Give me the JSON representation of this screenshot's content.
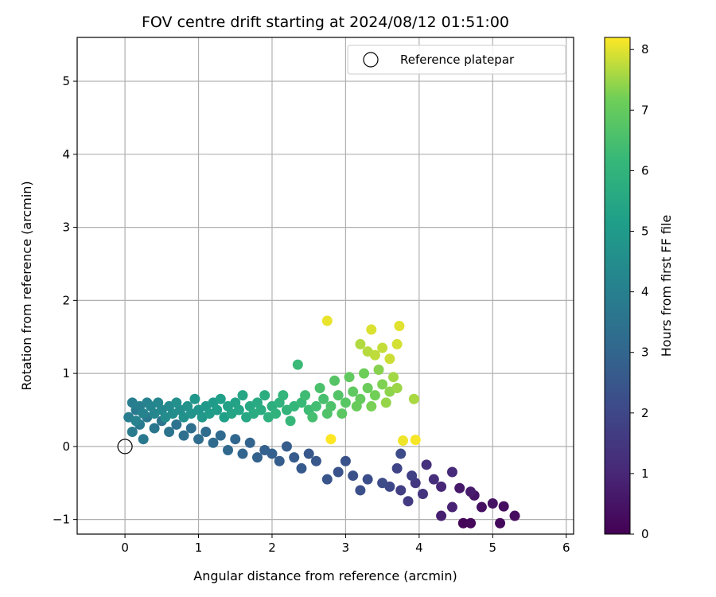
{
  "chart_data": {
    "type": "scatter",
    "title": "FOV centre drift starting at 2024/08/12 01:51:00",
    "xlabel": "Angular distance from reference (arcmin)",
    "ylabel": "Rotation from reference (arcmin)",
    "xlim": [
      -0.65,
      6.1
    ],
    "ylim": [
      -1.2,
      5.6
    ],
    "xticks": [
      0,
      1,
      2,
      3,
      4,
      5,
      6
    ],
    "yticks": [
      -1,
      0,
      1,
      2,
      3,
      4,
      5
    ],
    "grid": true,
    "colorbar": {
      "label": "Hours from first FF file",
      "range": [
        0,
        8.2
      ],
      "ticks": [
        0,
        1,
        2,
        3,
        4,
        5,
        6,
        7,
        8
      ],
      "colormap": "viridis"
    },
    "legend": {
      "placement": "top-right",
      "entries": [
        "Reference platepar"
      ]
    },
    "reference_point": {
      "x": 0,
      "y": 0,
      "label": "Reference platepar"
    },
    "series": [
      {
        "color_by": "hours",
        "points": [
          [
            4.6,
            -1.05,
            0.1
          ],
          [
            4.7,
            -1.05,
            0.15
          ],
          [
            5.1,
            -1.05,
            0.2
          ],
          [
            5.3,
            -0.95,
            0.3
          ],
          [
            5.15,
            -0.82,
            0.35
          ],
          [
            4.85,
            -0.83,
            0.4
          ],
          [
            5.0,
            -0.78,
            0.45
          ],
          [
            4.75,
            -0.67,
            0.5
          ],
          [
            4.55,
            -0.57,
            0.6
          ],
          [
            4.7,
            -0.62,
            0.7
          ],
          [
            4.3,
            -0.95,
            0.8
          ],
          [
            4.45,
            -0.83,
            0.9
          ],
          [
            4.3,
            -0.55,
            1.0
          ],
          [
            4.45,
            -0.35,
            1.1
          ],
          [
            4.2,
            -0.45,
            1.2
          ],
          [
            4.1,
            -0.25,
            1.3
          ],
          [
            4.05,
            -0.65,
            1.4
          ],
          [
            3.95,
            -0.5,
            1.5
          ],
          [
            3.85,
            -0.75,
            1.6
          ],
          [
            3.75,
            -0.6,
            1.7
          ],
          [
            3.9,
            -0.4,
            1.8
          ],
          [
            3.7,
            -0.3,
            1.9
          ],
          [
            3.6,
            -0.55,
            2.0
          ],
          [
            3.5,
            -0.5,
            2.1
          ],
          [
            3.75,
            -0.1,
            2.15
          ],
          [
            3.3,
            -0.45,
            2.2
          ],
          [
            3.2,
            -0.6,
            2.25
          ],
          [
            3.1,
            -0.4,
            2.3
          ],
          [
            3.0,
            -0.2,
            2.35
          ],
          [
            2.9,
            -0.35,
            2.4
          ],
          [
            2.75,
            -0.45,
            2.45
          ],
          [
            2.6,
            -0.2,
            2.5
          ],
          [
            2.5,
            -0.1,
            2.55
          ],
          [
            2.4,
            -0.3,
            2.6
          ],
          [
            2.3,
            -0.15,
            2.65
          ],
          [
            2.2,
            0.0,
            2.7
          ],
          [
            2.1,
            -0.2,
            2.75
          ],
          [
            2.0,
            -0.1,
            2.8
          ],
          [
            1.9,
            -0.05,
            2.85
          ],
          [
            1.8,
            -0.15,
            2.9
          ],
          [
            1.7,
            0.05,
            2.95
          ],
          [
            1.6,
            -0.1,
            3.0
          ],
          [
            1.5,
            0.1,
            3.05
          ],
          [
            1.4,
            -0.05,
            3.1
          ],
          [
            1.3,
            0.15,
            3.15
          ],
          [
            1.2,
            0.05,
            3.2
          ],
          [
            1.1,
            0.2,
            3.25
          ],
          [
            1.0,
            0.1,
            3.3
          ],
          [
            0.9,
            0.25,
            3.35
          ],
          [
            0.8,
            0.15,
            3.4
          ],
          [
            0.7,
            0.3,
            3.45
          ],
          [
            0.6,
            0.2,
            3.5
          ],
          [
            0.5,
            0.35,
            3.55
          ],
          [
            0.4,
            0.25,
            3.6
          ],
          [
            0.3,
            0.4,
            3.65
          ],
          [
            0.25,
            0.1,
            3.7
          ],
          [
            0.2,
            0.3,
            3.75
          ],
          [
            0.15,
            0.5,
            3.8
          ],
          [
            0.1,
            0.2,
            3.85
          ],
          [
            0.05,
            0.4,
            3.9
          ],
          [
            0.1,
            0.6,
            3.95
          ],
          [
            0.2,
            0.55,
            4.0
          ],
          [
            0.3,
            0.6,
            4.05
          ],
          [
            0.15,
            0.35,
            4.1
          ],
          [
            0.25,
            0.45,
            4.15
          ],
          [
            0.35,
            0.55,
            4.2
          ],
          [
            0.45,
            0.6,
            4.25
          ],
          [
            0.4,
            0.45,
            4.3
          ],
          [
            0.5,
            0.5,
            4.35
          ],
          [
            0.6,
            0.55,
            4.4
          ],
          [
            0.55,
            0.4,
            4.45
          ],
          [
            0.65,
            0.45,
            4.5
          ],
          [
            0.75,
            0.5,
            4.55
          ],
          [
            0.7,
            0.6,
            4.6
          ],
          [
            0.8,
            0.4,
            4.65
          ],
          [
            0.85,
            0.55,
            4.7
          ],
          [
            0.9,
            0.45,
            4.75
          ],
          [
            1.0,
            0.5,
            4.8
          ],
          [
            0.95,
            0.65,
            4.85
          ],
          [
            1.05,
            0.4,
            4.9
          ],
          [
            1.1,
            0.55,
            4.95
          ],
          [
            1.2,
            0.6,
            5.0
          ],
          [
            1.15,
            0.45,
            5.05
          ],
          [
            1.25,
            0.5,
            5.1
          ],
          [
            1.3,
            0.65,
            5.15
          ],
          [
            1.35,
            0.4,
            5.2
          ],
          [
            1.4,
            0.55,
            5.25
          ],
          [
            1.5,
            0.6,
            5.3
          ],
          [
            1.45,
            0.45,
            5.35
          ],
          [
            1.55,
            0.5,
            5.4
          ],
          [
            1.6,
            0.7,
            5.45
          ],
          [
            1.65,
            0.4,
            5.5
          ],
          [
            1.7,
            0.55,
            5.55
          ],
          [
            1.8,
            0.6,
            5.6
          ],
          [
            1.75,
            0.45,
            5.65
          ],
          [
            1.85,
            0.5,
            5.7
          ],
          [
            1.9,
            0.7,
            5.75
          ],
          [
            2.0,
            0.55,
            5.8
          ],
          [
            1.95,
            0.4,
            5.85
          ],
          [
            2.1,
            0.6,
            5.9
          ],
          [
            2.05,
            0.45,
            5.95
          ],
          [
            2.2,
            0.5,
            6.0
          ],
          [
            2.15,
            0.7,
            6.05
          ],
          [
            2.3,
            0.55,
            6.1
          ],
          [
            2.25,
            0.35,
            6.15
          ],
          [
            2.4,
            0.6,
            6.2
          ],
          [
            2.35,
            1.12,
            6.25
          ],
          [
            2.5,
            0.5,
            6.3
          ],
          [
            2.45,
            0.7,
            6.35
          ],
          [
            2.6,
            0.55,
            6.4
          ],
          [
            2.55,
            0.4,
            6.45
          ],
          [
            2.7,
            0.65,
            6.5
          ],
          [
            2.65,
            0.8,
            6.55
          ],
          [
            2.8,
            0.55,
            6.6
          ],
          [
            2.75,
            0.45,
            6.65
          ],
          [
            2.9,
            0.7,
            6.7
          ],
          [
            2.85,
            0.9,
            6.75
          ],
          [
            3.0,
            0.6,
            6.8
          ],
          [
            2.95,
            0.45,
            6.85
          ],
          [
            3.1,
            0.75,
            6.9
          ],
          [
            3.05,
            0.95,
            6.95
          ],
          [
            3.2,
            0.65,
            7.0
          ],
          [
            3.15,
            0.55,
            7.05
          ],
          [
            3.3,
            0.8,
            7.1
          ],
          [
            3.25,
            1.0,
            7.15
          ],
          [
            3.4,
            0.7,
            7.2
          ],
          [
            3.35,
            0.55,
            7.25
          ],
          [
            3.5,
            0.85,
            7.3
          ],
          [
            3.45,
            1.05,
            7.35
          ],
          [
            3.6,
            0.75,
            7.4
          ],
          [
            3.55,
            0.6,
            7.45
          ],
          [
            3.7,
            0.8,
            7.5
          ],
          [
            3.65,
            0.95,
            7.55
          ],
          [
            3.93,
            0.65,
            7.6
          ],
          [
            3.2,
            1.4,
            7.65
          ],
          [
            3.3,
            1.3,
            7.7
          ],
          [
            3.4,
            1.25,
            7.75
          ],
          [
            3.5,
            1.35,
            7.8
          ],
          [
            3.6,
            1.2,
            7.85
          ],
          [
            3.7,
            1.4,
            7.9
          ],
          [
            3.35,
            1.6,
            7.95
          ],
          [
            3.73,
            1.65,
            8.0
          ],
          [
            2.75,
            1.72,
            8.05
          ],
          [
            3.78,
            0.08,
            8.1
          ],
          [
            3.95,
            0.09,
            8.15
          ],
          [
            2.8,
            0.1,
            8.2
          ]
        ]
      }
    ]
  }
}
